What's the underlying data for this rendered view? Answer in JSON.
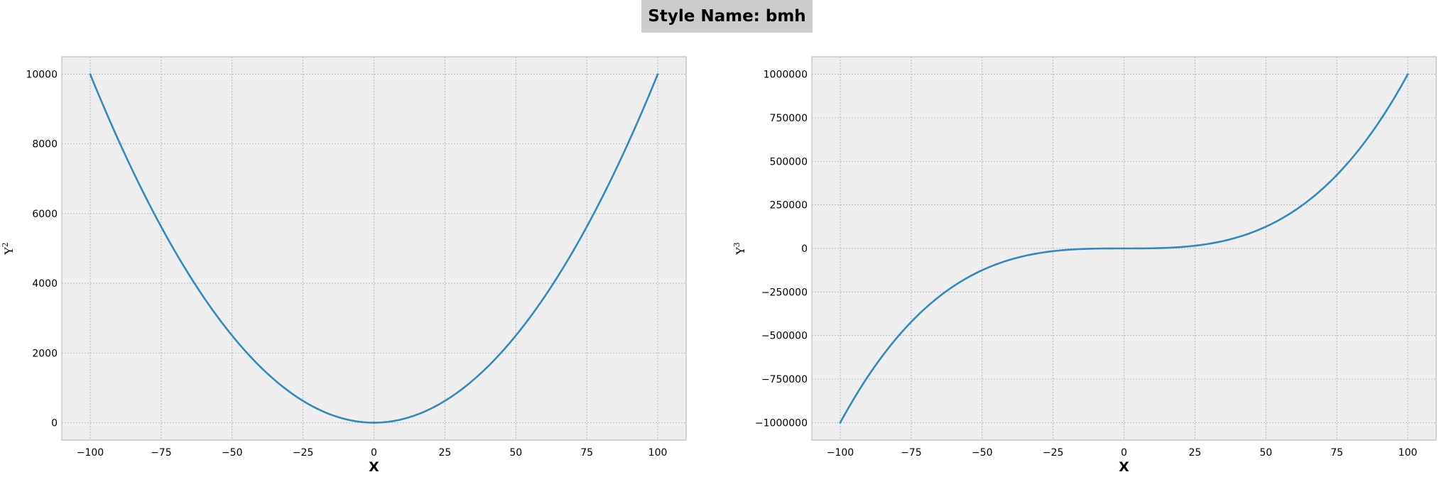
{
  "figure": {
    "suptitle": "Style Name: bmh"
  },
  "chart_data": [
    {
      "type": "line",
      "xlabel": "X",
      "ylabel": "Y",
      "ylabel_exponent": "2",
      "xlim": [
        -110,
        110
      ],
      "ylim": [
        -500,
        10500
      ],
      "xticks": [
        -100,
        -75,
        -50,
        -25,
        0,
        25,
        50,
        75,
        100
      ],
      "xtick_labels": [
        "−100",
        "−75",
        "−50",
        "−25",
        "0",
        "25",
        "50",
        "75",
        "100"
      ],
      "yticks": [
        0,
        2000,
        4000,
        6000,
        8000,
        10000
      ],
      "ytick_labels": [
        "0",
        "2000",
        "4000",
        "6000",
        "8000",
        "10000"
      ],
      "grid": true,
      "series": [
        {
          "function": "y = x^2",
          "x_range": [
            -100,
            100
          ],
          "color": "#348abd"
        }
      ]
    },
    {
      "type": "line",
      "xlabel": "X",
      "ylabel": "Y",
      "ylabel_exponent": "3",
      "xlim": [
        -110,
        110
      ],
      "ylim": [
        -1100000,
        1100000
      ],
      "xticks": [
        -100,
        -75,
        -50,
        -25,
        0,
        25,
        50,
        75,
        100
      ],
      "xtick_labels": [
        "−100",
        "−75",
        "−50",
        "−25",
        "0",
        "25",
        "50",
        "75",
        "100"
      ],
      "yticks": [
        -1000000,
        -750000,
        -500000,
        -250000,
        0,
        250000,
        500000,
        750000,
        1000000
      ],
      "ytick_labels": [
        "−1000000",
        "−750000",
        "−500000",
        "−250000",
        "0",
        "250000",
        "500000",
        "750000",
        "1000000"
      ],
      "grid": true,
      "series": [
        {
          "function": "y = x^3",
          "x_range": [
            -100,
            100
          ],
          "color": "#348abd"
        }
      ]
    }
  ],
  "colors": {
    "axes_background": "#eeeeee",
    "grid": "#b2b2b2",
    "spine": "#bcbcbc",
    "line": "#348abd"
  }
}
